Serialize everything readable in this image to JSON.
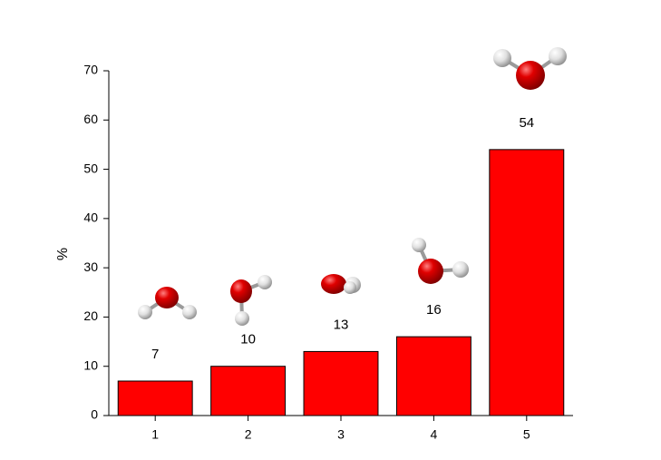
{
  "chart_data": {
    "type": "bar",
    "categories": [
      "1",
      "2",
      "3",
      "4",
      "5"
    ],
    "values": [
      7,
      10,
      13,
      16,
      54
    ],
    "color": "#ff0000",
    "ylabel": "%",
    "ylim": [
      0,
      70
    ],
    "yticks": [
      0,
      10,
      20,
      30,
      40,
      50,
      60,
      70
    ]
  }
}
